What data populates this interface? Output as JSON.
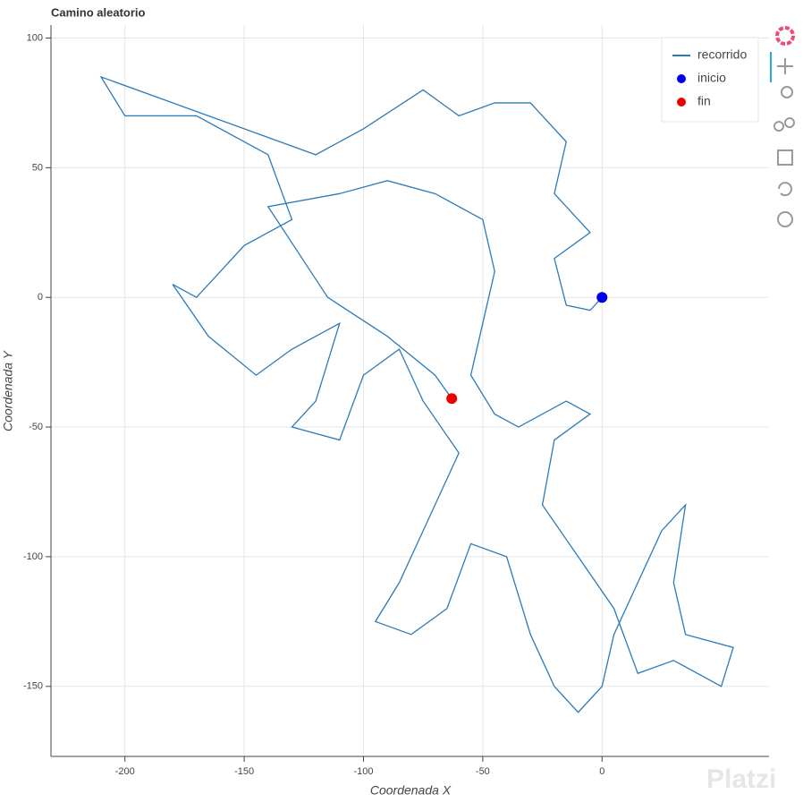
{
  "chart_data": {
    "type": "line",
    "title": "Camino aleatorio",
    "x_label": "Coordenada X",
    "y_label": "Coordenada Y",
    "watermark": "Platzi",
    "xlim": [
      -231,
      70
    ],
    "ylim": [
      -177,
      105
    ],
    "xticks": [
      -200,
      -150,
      -100,
      -50,
      0
    ],
    "yticks": [
      100,
      50,
      0,
      -50,
      -100,
      -150
    ],
    "grid": true,
    "legend": "top-right",
    "series": [
      {
        "name": "recorrido",
        "type": "line",
        "color": "#2b7bb9",
        "x": [
          0,
          -5,
          -15,
          -20,
          -5,
          -20,
          -15,
          -30,
          -45,
          -60,
          -75,
          -100,
          -120,
          -150,
          -180,
          -210,
          -200,
          -170,
          -140,
          -130,
          -150,
          -170,
          -180,
          -165,
          -145,
          -130,
          -110,
          -120,
          -130,
          -110,
          -100,
          -85,
          -75,
          -60,
          -70,
          -85,
          -95,
          -80,
          -65,
          -55,
          -40,
          -30,
          -20,
          -10,
          0,
          5,
          15,
          25,
          35,
          30,
          35,
          55,
          50,
          30,
          15,
          5,
          -10,
          -25,
          -20,
          -5,
          -15,
          -35,
          -45,
          -55,
          -50,
          -45,
          -50,
          -70,
          -90,
          -110,
          -140,
          -115,
          -90,
          -70,
          -63
        ],
        "values": [
          0,
          -5,
          -3,
          15,
          25,
          40,
          60,
          75,
          75,
          70,
          80,
          65,
          55,
          65,
          75,
          85,
          70,
          70,
          55,
          30,
          20,
          0,
          5,
          -15,
          -30,
          -20,
          -10,
          -40,
          -50,
          -55,
          -30,
          -20,
          -40,
          -60,
          -80,
          -110,
          -125,
          -130,
          -120,
          -95,
          -100,
          -130,
          -150,
          -160,
          -150,
          -130,
          -110,
          -90,
          -80,
          -110,
          -130,
          -135,
          -150,
          -140,
          -145,
          -120,
          -100,
          -80,
          -55,
          -45,
          -40,
          -50,
          -45,
          -30,
          -10,
          10,
          30,
          40,
          45,
          40,
          35,
          0,
          -15,
          -30,
          -39
        ]
      },
      {
        "name": "inicio",
        "type": "scatter",
        "color": "#0000ee",
        "x": [
          0
        ],
        "values": [
          0
        ]
      },
      {
        "name": "fin",
        "type": "scatter",
        "color": "#ee0000",
        "x": [
          -63
        ],
        "values": [
          -39
        ]
      }
    ]
  }
}
